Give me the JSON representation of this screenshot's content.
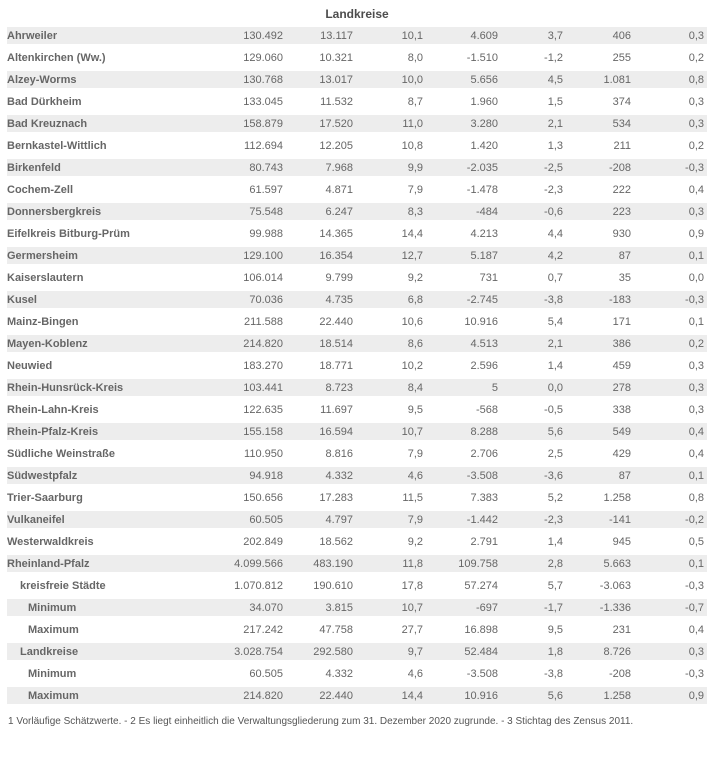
{
  "title": "Landkreise",
  "colors": {
    "row_alt_bg": "#ededed",
    "name_text": "#5a5a5a",
    "value_text": "#666666",
    "title_text": "#4d4d4d"
  },
  "table": {
    "rows": [
      {
        "name": "Ahrweiler",
        "indent": 0,
        "values": [
          "130.492",
          "13.117",
          "10,1",
          "4.609",
          "3,7",
          "406",
          "0,3"
        ]
      },
      {
        "name": "Altenkirchen (Ww.)",
        "indent": 0,
        "values": [
          "129.060",
          "10.321",
          "8,0",
          "-1.510",
          "-1,2",
          "255",
          "0,2"
        ]
      },
      {
        "name": "Alzey-Worms",
        "indent": 0,
        "values": [
          "130.768",
          "13.017",
          "10,0",
          "5.656",
          "4,5",
          "1.081",
          "0,8"
        ]
      },
      {
        "name": "Bad Dürkheim",
        "indent": 0,
        "values": [
          "133.045",
          "11.532",
          "8,7",
          "1.960",
          "1,5",
          "374",
          "0,3"
        ]
      },
      {
        "name": "Bad Kreuznach",
        "indent": 0,
        "values": [
          "158.879",
          "17.520",
          "11,0",
          "3.280",
          "2,1",
          "534",
          "0,3"
        ]
      },
      {
        "name": "Bernkastel-Wittlich",
        "indent": 0,
        "values": [
          "112.694",
          "12.205",
          "10,8",
          "1.420",
          "1,3",
          "211",
          "0,2"
        ]
      },
      {
        "name": "Birkenfeld",
        "indent": 0,
        "values": [
          "80.743",
          "7.968",
          "9,9",
          "-2.035",
          "-2,5",
          "-208",
          "-0,3"
        ]
      },
      {
        "name": "Cochem-Zell",
        "indent": 0,
        "values": [
          "61.597",
          "4.871",
          "7,9",
          "-1.478",
          "-2,3",
          "222",
          "0,4"
        ]
      },
      {
        "name": "Donnersbergkreis",
        "indent": 0,
        "values": [
          "75.548",
          "6.247",
          "8,3",
          "-484",
          "-0,6",
          "223",
          "0,3"
        ]
      },
      {
        "name": "Eifelkreis Bitburg-Prüm",
        "indent": 0,
        "values": [
          "99.988",
          "14.365",
          "14,4",
          "4.213",
          "4,4",
          "930",
          "0,9"
        ]
      },
      {
        "name": "Germersheim",
        "indent": 0,
        "values": [
          "129.100",
          "16.354",
          "12,7",
          "5.187",
          "4,2",
          "87",
          "0,1"
        ]
      },
      {
        "name": "Kaiserslautern",
        "indent": 0,
        "values": [
          "106.014",
          "9.799",
          "9,2",
          "731",
          "0,7",
          "35",
          "0,0"
        ]
      },
      {
        "name": "Kusel",
        "indent": 0,
        "values": [
          "70.036",
          "4.735",
          "6,8",
          "-2.745",
          "-3,8",
          "-183",
          "-0,3"
        ]
      },
      {
        "name": "Mainz-Bingen",
        "indent": 0,
        "values": [
          "211.588",
          "22.440",
          "10,6",
          "10.916",
          "5,4",
          "171",
          "0,1"
        ]
      },
      {
        "name": "Mayen-Koblenz",
        "indent": 0,
        "values": [
          "214.820",
          "18.514",
          "8,6",
          "4.513",
          "2,1",
          "386",
          "0,2"
        ]
      },
      {
        "name": "Neuwied",
        "indent": 0,
        "values": [
          "183.270",
          "18.771",
          "10,2",
          "2.596",
          "1,4",
          "459",
          "0,3"
        ]
      },
      {
        "name": "Rhein-Hunsrück-Kreis",
        "indent": 0,
        "values": [
          "103.441",
          "8.723",
          "8,4",
          "5",
          "0,0",
          "278",
          "0,3"
        ]
      },
      {
        "name": "Rhein-Lahn-Kreis",
        "indent": 0,
        "values": [
          "122.635",
          "11.697",
          "9,5",
          "-568",
          "-0,5",
          "338",
          "0,3"
        ]
      },
      {
        "name": "Rhein-Pfalz-Kreis",
        "indent": 0,
        "values": [
          "155.158",
          "16.594",
          "10,7",
          "8.288",
          "5,6",
          "549",
          "0,4"
        ]
      },
      {
        "name": "Südliche Weinstraße",
        "indent": 0,
        "values": [
          "110.950",
          "8.816",
          "7,9",
          "2.706",
          "2,5",
          "429",
          "0,4"
        ]
      },
      {
        "name": "Südwestpfalz",
        "indent": 0,
        "values": [
          "94.918",
          "4.332",
          "4,6",
          "-3.508",
          "-3,6",
          "87",
          "0,1"
        ]
      },
      {
        "name": "Trier-Saarburg",
        "indent": 0,
        "values": [
          "150.656",
          "17.283",
          "11,5",
          "7.383",
          "5,2",
          "1.258",
          "0,8"
        ]
      },
      {
        "name": "Vulkaneifel",
        "indent": 0,
        "values": [
          "60.505",
          "4.797",
          "7,9",
          "-1.442",
          "-2,3",
          "-141",
          "-0,2"
        ]
      },
      {
        "name": "Westerwaldkreis",
        "indent": 0,
        "values": [
          "202.849",
          "18.562",
          "9,2",
          "2.791",
          "1,4",
          "945",
          "0,5"
        ]
      },
      {
        "name": "Rheinland-Pfalz",
        "indent": 0,
        "values": [
          "4.099.566",
          "483.190",
          "11,8",
          "109.758",
          "2,8",
          "5.663",
          "0,1"
        ]
      },
      {
        "name": "kreisfreie Städte",
        "indent": 1,
        "values": [
          "1.070.812",
          "190.610",
          "17,8",
          "57.274",
          "5,7",
          "-3.063",
          "-0,3"
        ]
      },
      {
        "name": "Minimum",
        "indent": 2,
        "values": [
          "34.070",
          "3.815",
          "10,7",
          "-697",
          "-1,7",
          "-1.336",
          "-0,7"
        ]
      },
      {
        "name": "Maximum",
        "indent": 2,
        "values": [
          "217.242",
          "47.758",
          "27,7",
          "16.898",
          "9,5",
          "231",
          "0,4"
        ]
      },
      {
        "name": "Landkreise",
        "indent": 1,
        "values": [
          "3.028.754",
          "292.580",
          "9,7",
          "52.484",
          "1,8",
          "8.726",
          "0,3"
        ]
      },
      {
        "name": "Minimum",
        "indent": 2,
        "values": [
          "60.505",
          "4.332",
          "4,6",
          "-3.508",
          "-3,8",
          "-208",
          "-0,3"
        ]
      },
      {
        "name": "Maximum",
        "indent": 2,
        "values": [
          "214.820",
          "22.440",
          "14,4",
          "10.916",
          "5,6",
          "1.258",
          "0,9"
        ]
      }
    ]
  },
  "footnote": "1 Vorläufige Schätzwerte. - 2 Es liegt einheitlich die Verwaltungsgliederung zum 31. Dezember 2020 zugrunde. - 3 Stichtag des Zensus 2011."
}
